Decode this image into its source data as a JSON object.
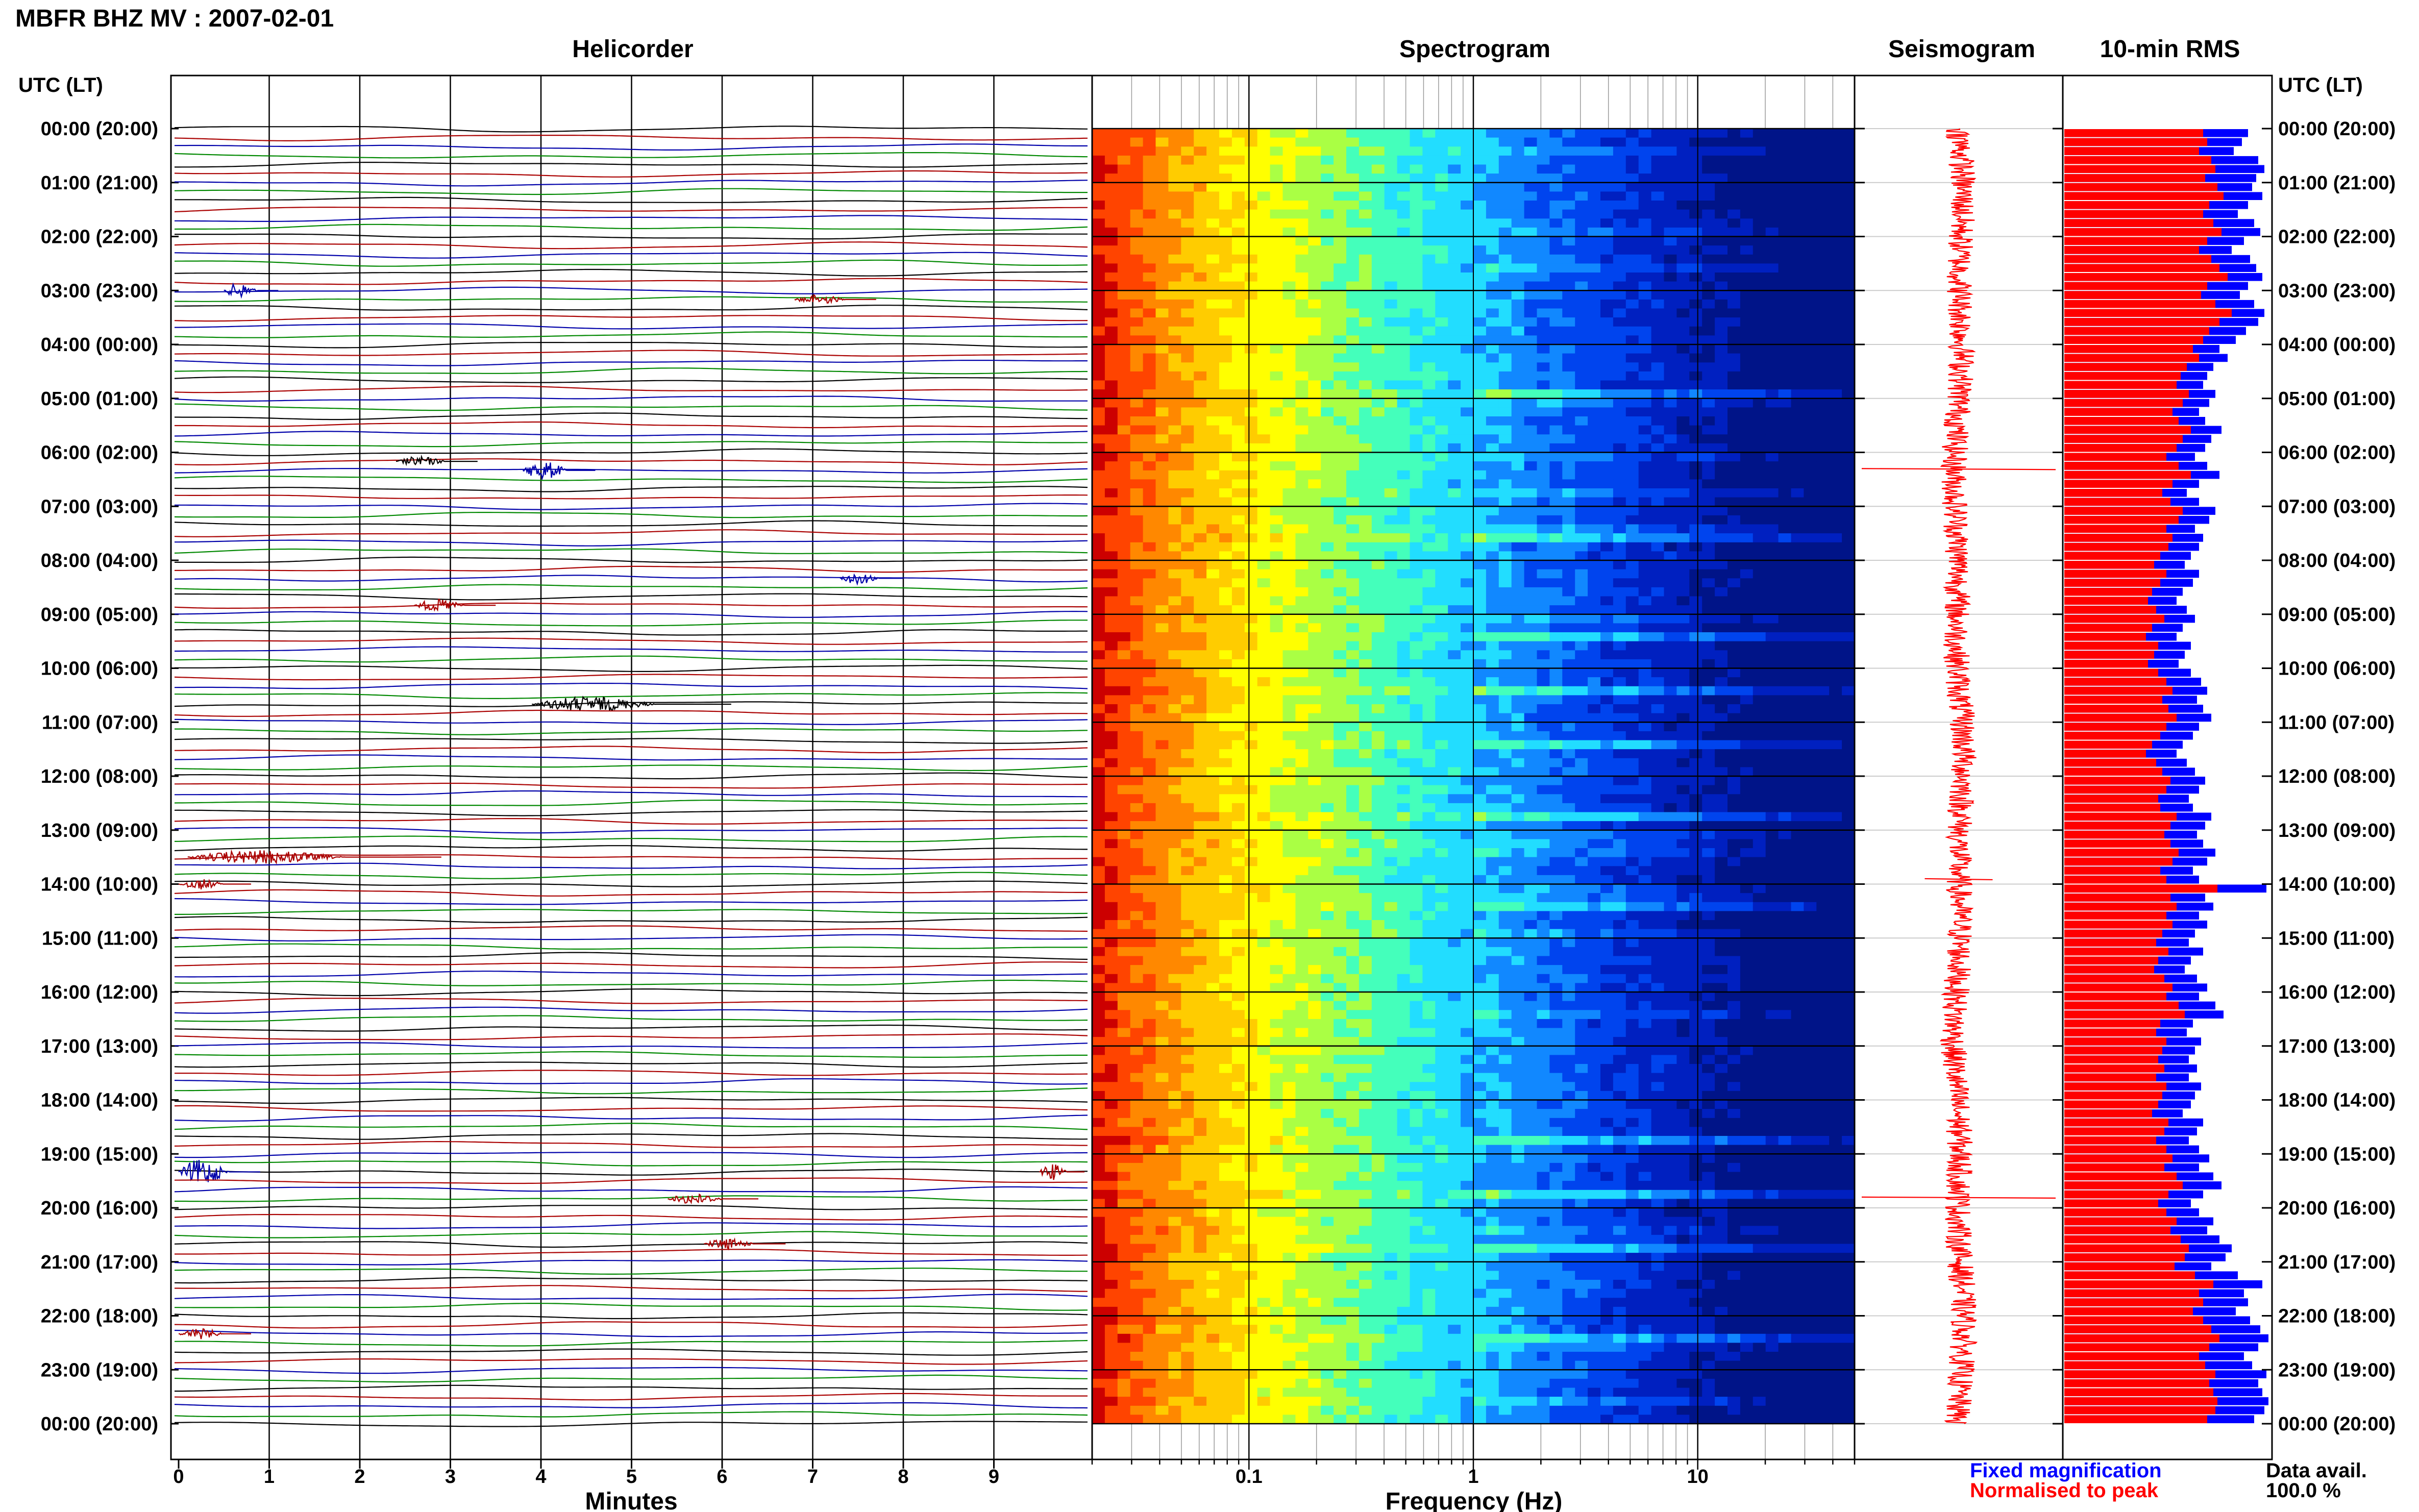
{
  "title": "MBFR BHZ MV : 2007-02-01",
  "panels": {
    "helicorder": "Helicorder",
    "spectrogram": "Spectrogram",
    "seismogram": "Seismogram",
    "rms": "10-min RMS"
  },
  "time_axis_title": "UTC (LT)",
  "time_labels": [
    "00:00 (20:00)",
    "01:00 (21:00)",
    "02:00 (22:00)",
    "03:00 (23:00)",
    "04:00 (00:00)",
    "05:00 (01:00)",
    "06:00 (02:00)",
    "07:00 (03:00)",
    "08:00 (04:00)",
    "09:00 (05:00)",
    "10:00 (06:00)",
    "11:00 (07:00)",
    "12:00 (08:00)",
    "13:00 (09:00)",
    "14:00 (10:00)",
    "15:00 (11:00)",
    "16:00 (12:00)",
    "17:00 (13:00)",
    "18:00 (14:00)",
    "19:00 (15:00)",
    "20:00 (16:00)",
    "21:00 (17:00)",
    "22:00 (18:00)",
    "23:00 (19:00)",
    "00:00 (20:00)"
  ],
  "helicorder_xlabel": "Minutes",
  "helicorder_xticks": [
    "0",
    "1",
    "2",
    "3",
    "4",
    "5",
    "6",
    "7",
    "8",
    "9"
  ],
  "spectrogram_xlabel": "Frequency (Hz)",
  "spectrogram_xticks": [
    "0.1",
    "1",
    "10"
  ],
  "legend": {
    "fixed": "Fixed magnification",
    "normalised": "Normalised to peak",
    "fixed_color": "#0000ff",
    "normalised_color": "#ff0000"
  },
  "data_avail_label": "Data avail.",
  "data_avail_value": "100.0 %",
  "chart_data": [
    {
      "type": "line",
      "title": "Helicorder",
      "xlabel": "Minutes",
      "xlim": [
        0,
        10
      ],
      "x_ticks": [
        0,
        1,
        2,
        3,
        4,
        5,
        6,
        7,
        8,
        9
      ],
      "rows": 144,
      "row_minutes": 10,
      "trace_colors": [
        "#000000",
        "#aa0000",
        "#0000aa",
        "#008800"
      ],
      "events": [
        {
          "row": 18,
          "start_min": 0.5,
          "dur_min": 0.6,
          "amp": 2.0,
          "color": "#0000aa"
        },
        {
          "row": 19,
          "start_min": 6.8,
          "dur_min": 0.9,
          "amp": 1.3,
          "color": "#aa0000"
        },
        {
          "row": 37,
          "start_min": 2.4,
          "dur_min": 0.9,
          "amp": 1.3,
          "color": "#000000"
        },
        {
          "row": 38,
          "start_min": 3.8,
          "dur_min": 0.8,
          "amp": 2.5,
          "color": "#0000aa"
        },
        {
          "row": 50,
          "start_min": 7.3,
          "dur_min": 0.7,
          "amp": 1.6,
          "color": "#0000aa"
        },
        {
          "row": 53,
          "start_min": 2.6,
          "dur_min": 0.9,
          "amp": 1.6,
          "color": "#aa0000"
        },
        {
          "row": 64,
          "start_min": 3.9,
          "dur_min": 2.2,
          "amp": 2.0,
          "color": "#000000"
        },
        {
          "row": 81,
          "start_min": 0.1,
          "dur_min": 2.8,
          "amp": 1.8,
          "color": "#aa0000"
        },
        {
          "row": 84,
          "start_min": 0.0,
          "dur_min": 0.8,
          "amp": 1.4,
          "color": "#aa0000"
        },
        {
          "row": 116,
          "start_min": 0.0,
          "dur_min": 0.9,
          "amp": 3.4,
          "color": "#0000aa"
        },
        {
          "row": 116,
          "start_min": 9.5,
          "dur_min": 0.5,
          "amp": 2.2,
          "color": "#aa0000"
        },
        {
          "row": 119,
          "start_min": 5.4,
          "dur_min": 1.0,
          "amp": 1.4,
          "color": "#aa0000"
        },
        {
          "row": 124,
          "start_min": 5.8,
          "dur_min": 0.9,
          "amp": 1.4,
          "color": "#aa0000"
        },
        {
          "row": 134,
          "start_min": 0.0,
          "dur_min": 0.8,
          "amp": 1.4,
          "color": "#aa0000"
        }
      ]
    },
    {
      "type": "heatmap",
      "title": "Spectrogram",
      "xlabel": "Frequency (Hz)",
      "x_scale": "log",
      "xlim": [
        0.02,
        50
      ],
      "x_ticks": [
        0.1,
        1,
        10
      ],
      "colormap": [
        "#cc0000",
        "#ff4400",
        "#ff8800",
        "#ffcc00",
        "#ffff00",
        "#aaff44",
        "#44ffbb",
        "#22ddff",
        "#1188ff",
        "#0044ee",
        "#0020c0",
        "#001488"
      ],
      "bright_rows": [
        29,
        45,
        56,
        62,
        68,
        76,
        86,
        112,
        118,
        124,
        134,
        144
      ]
    },
    {
      "type": "line",
      "title": "Seismogram",
      "color": "#ff0000",
      "spikes": [
        {
          "hour": 6.3,
          "amp": 1.0
        },
        {
          "hour": 19.8,
          "amp": 1.0
        },
        {
          "hour": 13.9,
          "amp": 0.35
        }
      ]
    },
    {
      "type": "bar",
      "title": "10-min RMS",
      "orientation": "horizontal",
      "series": [
        {
          "name": "Fixed magnification",
          "color": "#0000ff",
          "values": [
            0.9,
            0.87,
            0.83,
            0.95,
            0.98,
            0.94,
            0.92,
            0.97,
            0.9,
            0.85,
            0.93,
            0.96,
            0.88,
            0.82,
            0.91,
            0.94,
            0.97,
            0.9,
            0.86,
            0.93,
            0.98,
            0.95,
            0.89,
            0.84,
            0.76,
            0.8,
            0.73,
            0.7,
            0.68,
            0.74,
            0.71,
            0.66,
            0.69,
            0.77,
            0.72,
            0.69,
            0.64,
            0.7,
            0.76,
            0.66,
            0.6,
            0.66,
            0.74,
            0.71,
            0.64,
            0.68,
            0.66,
            0.62,
            0.59,
            0.66,
            0.63,
            0.58,
            0.55,
            0.6,
            0.64,
            0.58,
            0.55,
            0.62,
            0.59,
            0.56,
            0.62,
            0.67,
            0.7,
            0.65,
            0.68,
            0.72,
            0.66,
            0.63,
            0.58,
            0.55,
            0.6,
            0.64,
            0.69,
            0.66,
            0.61,
            0.63,
            0.72,
            0.69,
            0.65,
            0.68,
            0.74,
            0.7,
            0.63,
            0.66,
            0.99,
            0.69,
            0.73,
            0.66,
            0.7,
            0.64,
            0.61,
            0.68,
            0.62,
            0.59,
            0.65,
            0.7,
            0.66,
            0.74,
            0.78,
            0.63,
            0.6,
            0.67,
            0.64,
            0.61,
            0.65,
            0.61,
            0.67,
            0.64,
            0.62,
            0.58,
            0.68,
            0.65,
            0.61,
            0.66,
            0.71,
            0.66,
            0.73,
            0.77,
            0.68,
            0.62,
            0.66,
            0.73,
            0.7,
            0.76,
            0.82,
            0.79,
            0.72,
            0.85,
            0.97,
            0.88,
            0.9,
            0.84,
            0.91,
            0.96,
            1.0,
            0.95,
            0.88,
            0.92,
            0.99,
            0.95,
            0.97,
            1.0,
            0.98,
            0.93
          ]
        },
        {
          "name": "Normalised to peak",
          "color": "#ff0000",
          "values": [
            0.68,
            0.7,
            0.66,
            0.72,
            0.74,
            0.69,
            0.75,
            0.78,
            0.71,
            0.68,
            0.73,
            0.77,
            0.7,
            0.66,
            0.72,
            0.76,
            0.8,
            0.7,
            0.67,
            0.74,
            0.82,
            0.76,
            0.71,
            0.68,
            0.63,
            0.66,
            0.6,
            0.57,
            0.55,
            0.61,
            0.58,
            0.53,
            0.56,
            0.62,
            0.58,
            0.55,
            0.5,
            0.56,
            0.62,
            0.53,
            0.48,
            0.52,
            0.58,
            0.56,
            0.5,
            0.53,
            0.51,
            0.47,
            0.44,
            0.5,
            0.47,
            0.43,
            0.41,
            0.45,
            0.49,
            0.43,
            0.4,
            0.46,
            0.44,
            0.41,
            0.46,
            0.5,
            0.53,
            0.48,
            0.51,
            0.55,
            0.5,
            0.47,
            0.43,
            0.4,
            0.45,
            0.48,
            0.52,
            0.5,
            0.46,
            0.47,
            0.55,
            0.52,
            0.49,
            0.52,
            0.56,
            0.53,
            0.47,
            0.5,
            0.75,
            0.52,
            0.55,
            0.5,
            0.53,
            0.48,
            0.45,
            0.51,
            0.46,
            0.44,
            0.49,
            0.53,
            0.5,
            0.56,
            0.59,
            0.47,
            0.45,
            0.5,
            0.48,
            0.46,
            0.49,
            0.45,
            0.5,
            0.48,
            0.46,
            0.43,
            0.51,
            0.49,
            0.45,
            0.5,
            0.53,
            0.49,
            0.55,
            0.58,
            0.51,
            0.46,
            0.5,
            0.55,
            0.52,
            0.57,
            0.61,
            0.59,
            0.54,
            0.64,
            0.73,
            0.66,
            0.68,
            0.63,
            0.68,
            0.72,
            0.76,
            0.71,
            0.66,
            0.69,
            0.74,
            0.71,
            0.73,
            0.75,
            0.74,
            0.7
          ]
        }
      ]
    }
  ]
}
